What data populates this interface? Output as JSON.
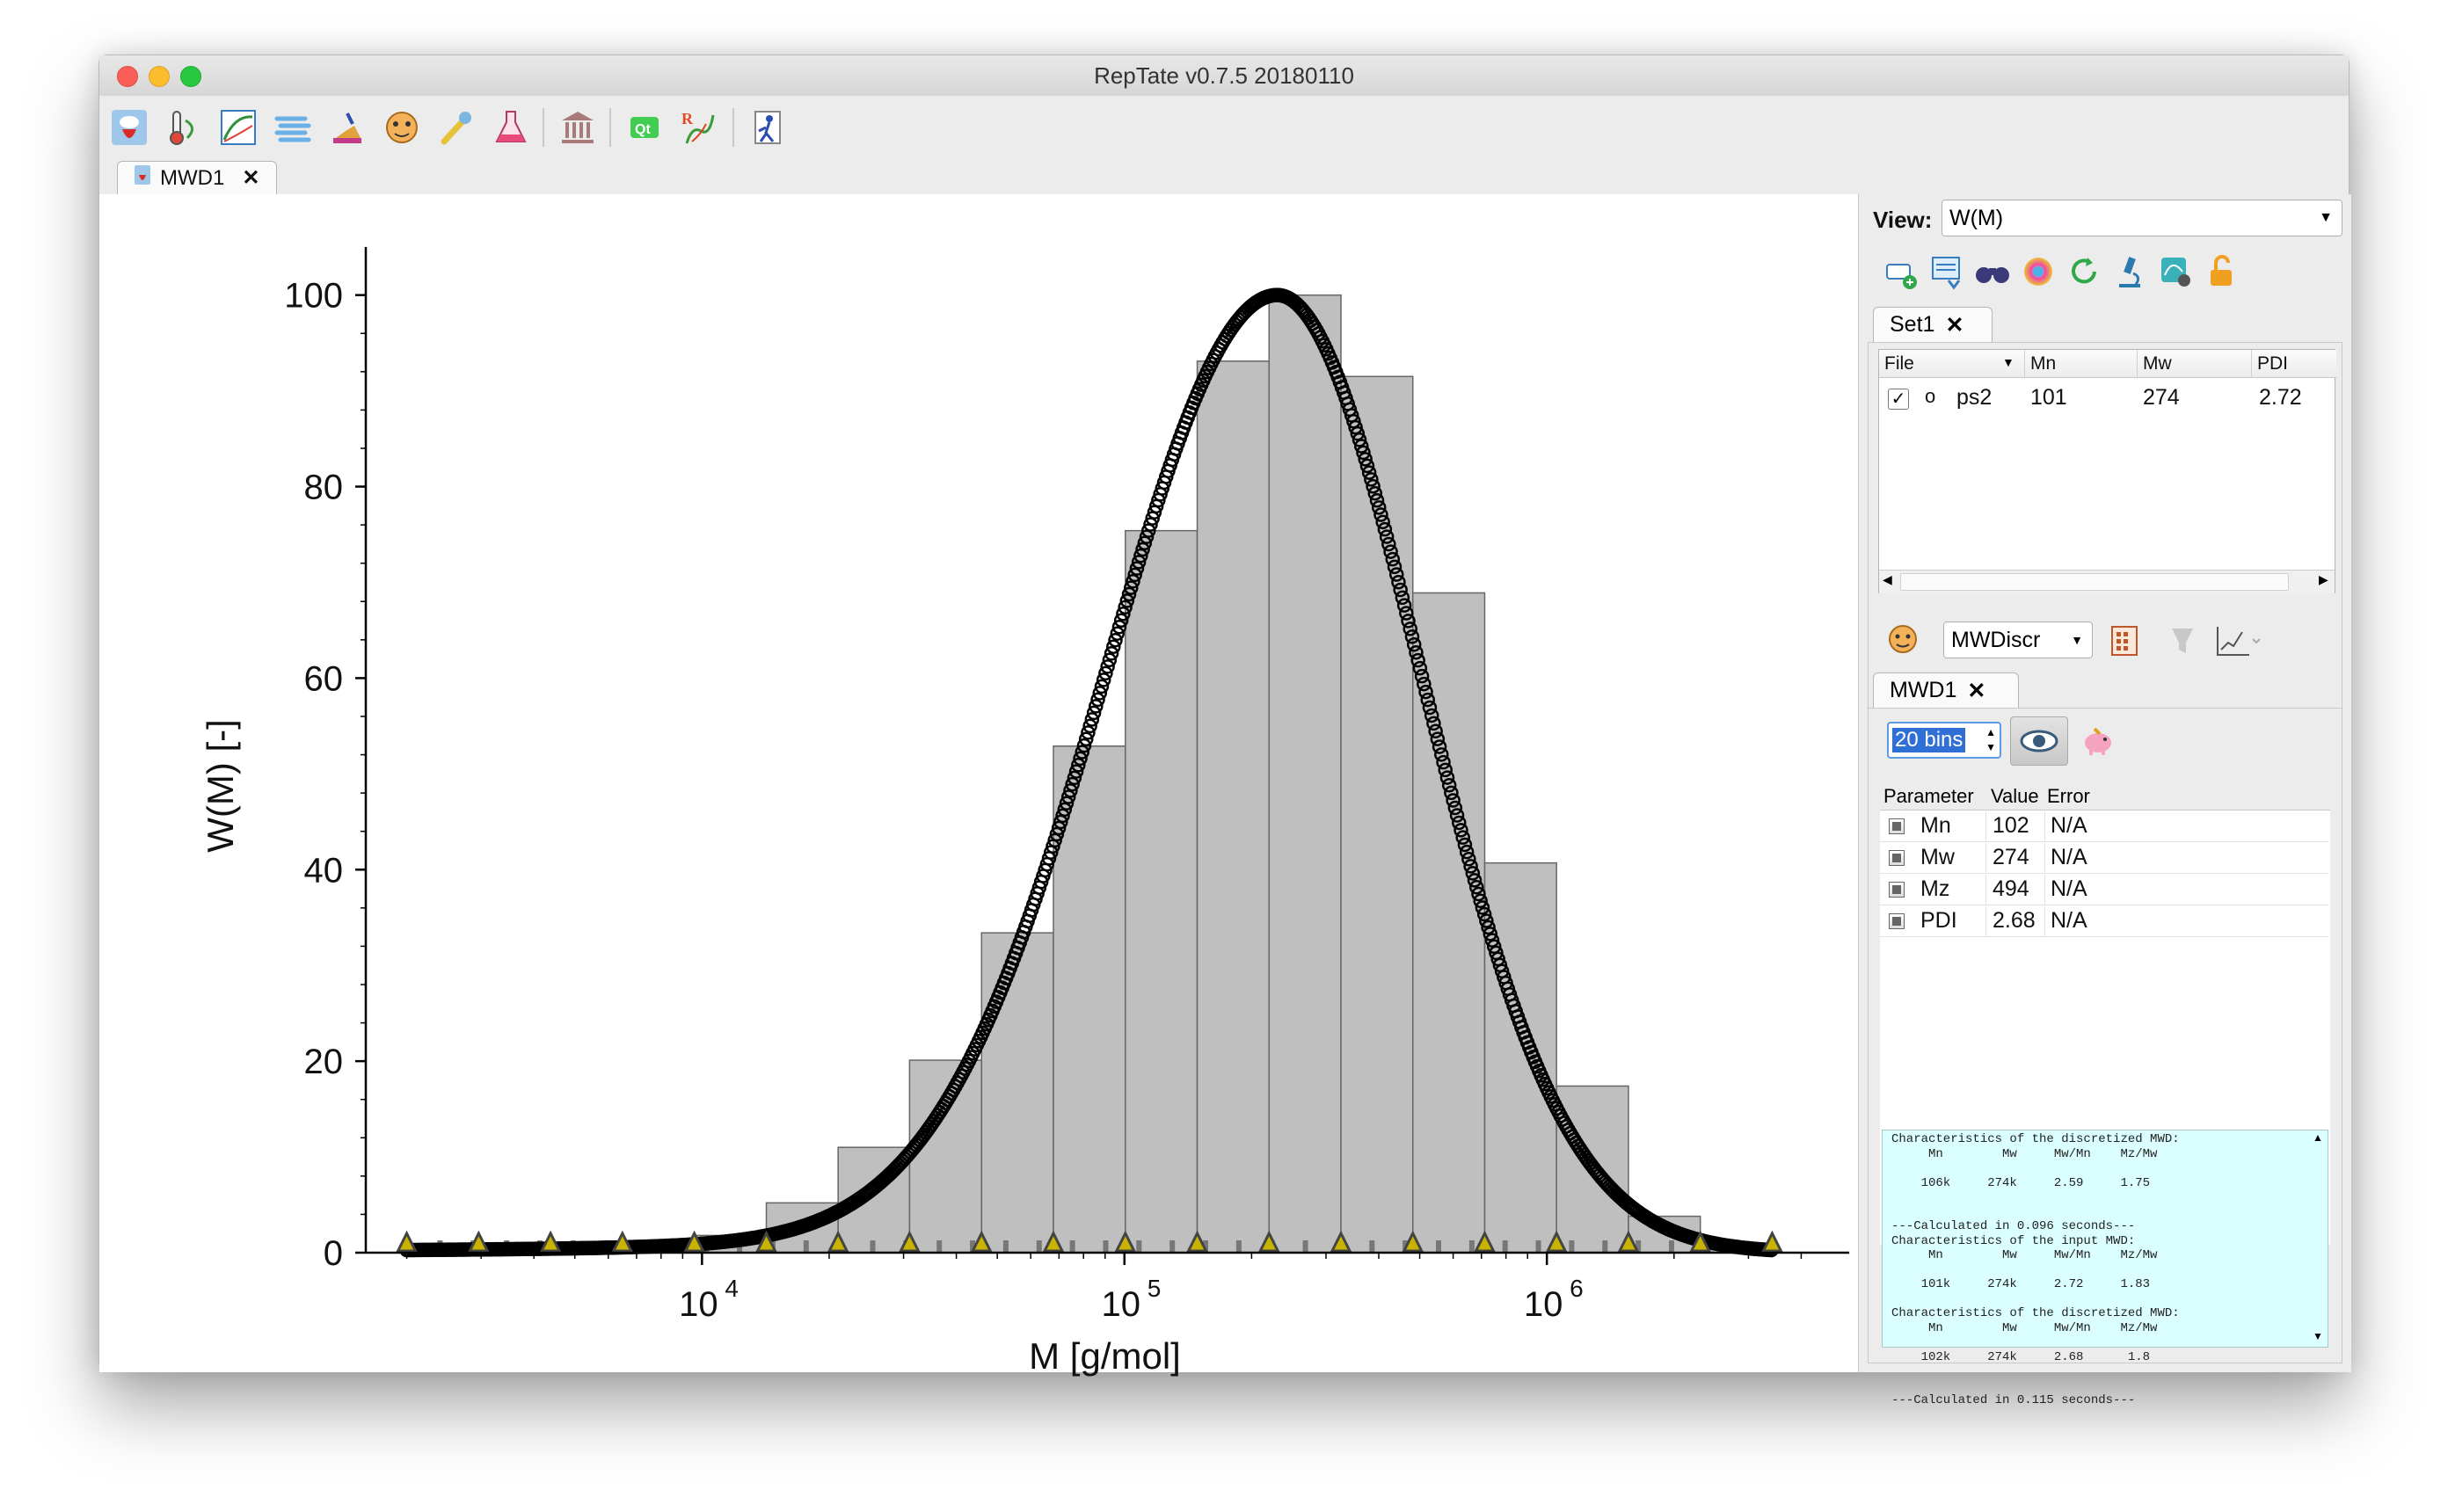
{
  "window": {
    "title": "RepTate v0.7.5 20180110"
  },
  "toolbar": {
    "icons": [
      "mwd-app-icon",
      "thermometer-icon",
      "chart-icon",
      "gauge-icon",
      "chemistry-icon",
      "theory-icon",
      "pin-icon",
      "flask-icon",
      "museum-icon",
      "qt-icon",
      "reptate-logo-icon",
      "exit-icon"
    ]
  },
  "doc_tab": {
    "label": "MWD1"
  },
  "view": {
    "label": "View:",
    "selected": "W(M)"
  },
  "set_tab": {
    "label": "Set1"
  },
  "files_table": {
    "headers": [
      "File",
      "Mn",
      "Mw",
      "PDI"
    ],
    "rows": [
      {
        "checked": "✓",
        "marker": "o",
        "file": "ps2",
        "mn": "101",
        "mw": "274",
        "pdi": "2.72"
      }
    ]
  },
  "theory": {
    "selected": "MWDiscr",
    "tab_label": "MWD1",
    "bins": "20 bins"
  },
  "params_table": {
    "headers": [
      "Parameter",
      "Value",
      "Error"
    ],
    "rows": [
      {
        "name": "Mn",
        "value": "102",
        "error": "N/A"
      },
      {
        "name": "Mw",
        "value": "274",
        "error": "N/A"
      },
      {
        "name": "Mz",
        "value": "494",
        "error": "N/A"
      },
      {
        "name": "PDI",
        "value": "2.68",
        "error": "N/A"
      }
    ]
  },
  "console_text": "Characteristics of the discretized MWD:\n     Mn        Mw     Mw/Mn    Mz/Mw\n\n    106k     274k     2.59     1.75\n\n\n---Calculated in 0.096 seconds---\nCharacteristics of the input MWD:\n     Mn        Mw     Mw/Mn    Mz/Mw\n\n    101k     274k     2.72     1.83\n\nCharacteristics of the discretized MWD:\n     Mn        Mw     Mw/Mn    Mz/Mw\n\n    102k     274k     2.68      1.8\n\n\n---Calculated in 0.115 seconds---",
  "chart_data": {
    "type": "bar",
    "xlabel": "M [g/mol]",
    "ylabel": "W(M) [-]",
    "x_scale": "log",
    "xlim": [
      1600,
      4500000
    ],
    "ylim": [
      0,
      103
    ],
    "yticks": [
      0,
      20,
      40,
      60,
      80,
      100
    ],
    "ytick_labels": [
      "0",
      "20",
      "40",
      "60",
      "80",
      "100"
    ],
    "xticks": [
      10000,
      100000,
      1000000
    ],
    "xtick_base": "10",
    "xtick_exponents": [
      "4",
      "5",
      "6"
    ],
    "bins_edges": [
      2000,
      2960,
      4380,
      6480,
      9590,
      14200,
      21000,
      31000,
      45900,
      67900,
      100500,
      148700,
      220000,
      325500,
      481600,
      712600,
      1054000,
      1560000,
      2308000,
      3415000
    ],
    "bin_values": [
      0.6,
      0.6,
      0.7,
      0.9,
      1.8,
      5.2,
      11.0,
      20.1,
      33.4,
      52.9,
      75.4,
      93.1,
      100.0,
      91.5,
      68.9,
      40.7,
      17.4,
      3.8,
      0.7
    ],
    "curve": {
      "peak_M": 230000,
      "peak_W": 100.0
    },
    "triangle_marker_color": "#c8b400"
  }
}
